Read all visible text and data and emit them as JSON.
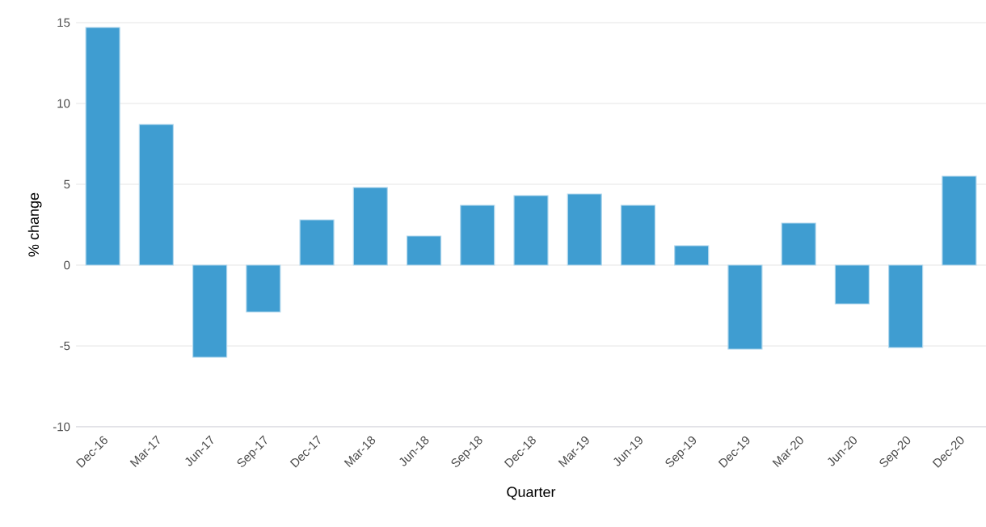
{
  "chart_data": {
    "type": "bar",
    "xlabel": "Quarter",
    "ylabel": "% change",
    "categories": [
      "Dec-16",
      "Mar-17",
      "Jun-17",
      "Sep-17",
      "Dec-17",
      "Mar-18",
      "Jun-18",
      "Sep-18",
      "Dec-18",
      "Mar-19",
      "Jun-19",
      "Sep-19",
      "Dec-19",
      "Mar-20",
      "Jun-20",
      "Sep-20",
      "Dec-20"
    ],
    "values": [
      14.7,
      8.7,
      -5.7,
      -2.9,
      2.8,
      4.8,
      1.8,
      3.7,
      4.3,
      4.4,
      3.7,
      1.2,
      -5.2,
      2.6,
      -2.4,
      -5.1,
      5.5
    ],
    "color": "#3f9dd1",
    "ylim": [
      -10,
      15
    ],
    "yticks": [
      -10,
      -5,
      0,
      5,
      10,
      15
    ],
    "grid": "y"
  }
}
